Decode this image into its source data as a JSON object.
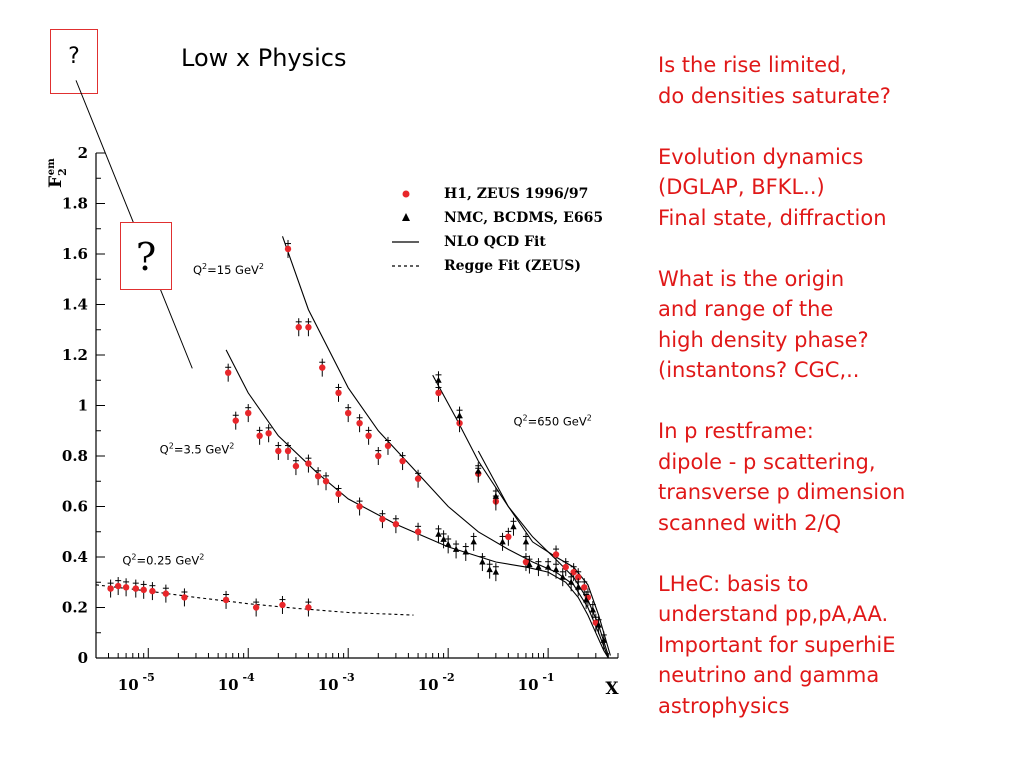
{
  "slide": {
    "title": "Low x Physics",
    "question_mark_1": "?",
    "question_mark_2": "?",
    "notes": [
      [
        "Is the rise limited,",
        "do densities saturate?"
      ],
      [
        "Evolution dynamics",
        "(DGLAP, BFKL..)",
        "Final state, diffraction"
      ],
      [
        "What is the origin",
        "and range of the",
        "high density phase?",
        "(instantons? CGC,.."
      ],
      [
        "In p restframe:",
        "dipole - p scattering,",
        "transverse p dimension",
        "scanned with 2/Q"
      ],
      [
        "LHeC: basis to",
        "understand pp,pA,AA.",
        "Important for superhiE",
        "neutrino and gamma",
        "astrophysics"
      ]
    ]
  },
  "chart_data": {
    "type": "scatter",
    "xlabel": "X",
    "ylabel_main": "F",
    "ylabel_sub": "2",
    "ylabel_sup": "em",
    "x_scale": "log",
    "xlim": [
      3e-06,
      0.5
    ],
    "ylim": [
      0,
      2
    ],
    "y_ticks": [
      "0",
      "0.2",
      "0.4",
      "0.6",
      "0.8",
      "1",
      "1.2",
      "1.4",
      "1.6",
      "1.8",
      "2"
    ],
    "x_ticks": [
      {
        "base": "10",
        "exp": "-5",
        "value": 1e-05
      },
      {
        "base": "10",
        "exp": "-4",
        "value": 0.0001
      },
      {
        "base": "10",
        "exp": "-3",
        "value": 0.001
      },
      {
        "base": "10",
        "exp": "-2",
        "value": 0.01
      },
      {
        "base": "10",
        "exp": "-1",
        "value": 0.1
      }
    ],
    "legend": [
      {
        "label": "H1, ZEUS 1996/97",
        "marker": "circle",
        "color": "#e8262a"
      },
      {
        "label": "NMC, BCDMS, E665",
        "marker": "triangle",
        "color": "#000000"
      },
      {
        "label": "NLO QCD Fit",
        "marker": "solid-line",
        "color": "#000000"
      },
      {
        "label": "Regge Fit (ZEUS)",
        "marker": "dashed-line",
        "color": "#000000"
      }
    ],
    "legend_placement": "top-right",
    "q2_labels": [
      {
        "pre": "Q",
        "sup": "2",
        "mid": "=15 GeV",
        "sup2": "2",
        "x": 2.8e-05,
        "y": 1.52
      },
      {
        "pre": "Q",
        "sup": "2",
        "mid": "=3.5 GeV",
        "sup2": "2",
        "x": 1.3e-05,
        "y": 0.81
      },
      {
        "pre": "Q",
        "sup": "2",
        "mid": "=0.25 GeV",
        "sup2": "2",
        "x": 5.5e-06,
        "y": 0.37
      },
      {
        "pre": "Q",
        "sup": "2",
        "mid": "=650 GeV",
        "sup2": "2",
        "x": 0.045,
        "y": 0.92
      }
    ],
    "series": [
      {
        "name": "H1, ZEUS 1996/97",
        "marker": "circle",
        "color": "#e8262a",
        "points": [
          [
            4.2e-06,
            0.275
          ],
          [
            5e-06,
            0.285
          ],
          [
            6e-06,
            0.28
          ],
          [
            7.5e-06,
            0.275
          ],
          [
            9e-06,
            0.27
          ],
          [
            1.1e-05,
            0.265
          ],
          [
            1.5e-05,
            0.255
          ],
          [
            2.3e-05,
            0.24
          ],
          [
            6e-05,
            0.23
          ],
          [
            0.00012,
            0.2
          ],
          [
            0.00022,
            0.21
          ],
          [
            0.0004,
            0.2
          ],
          [
            6.3e-05,
            1.13
          ],
          [
            7.5e-05,
            0.94
          ],
          [
            0.0001,
            0.97
          ],
          [
            0.00013,
            0.88
          ],
          [
            0.00016,
            0.89
          ],
          [
            0.0002,
            0.82
          ],
          [
            0.00025,
            0.82
          ],
          [
            0.0003,
            0.76
          ],
          [
            0.0004,
            0.77
          ],
          [
            0.0005,
            0.72
          ],
          [
            0.0006,
            0.7
          ],
          [
            0.0008,
            0.65
          ],
          [
            0.0013,
            0.6
          ],
          [
            0.0022,
            0.55
          ],
          [
            0.003,
            0.53
          ],
          [
            0.005,
            0.5
          ],
          [
            0.00025,
            1.62
          ],
          [
            0.00032,
            1.31
          ],
          [
            0.0004,
            1.31
          ],
          [
            0.00055,
            1.15
          ],
          [
            0.0008,
            1.05
          ],
          [
            0.001,
            0.97
          ],
          [
            0.0013,
            0.93
          ],
          [
            0.0016,
            0.88
          ],
          [
            0.002,
            0.8
          ],
          [
            0.0025,
            0.84
          ],
          [
            0.0035,
            0.78
          ],
          [
            0.005,
            0.71
          ],
          [
            0.008,
            1.05
          ],
          [
            0.013,
            0.93
          ],
          [
            0.02,
            0.73
          ],
          [
            0.03,
            0.62
          ],
          [
            0.04,
            0.48
          ],
          [
            0.06,
            0.38
          ],
          [
            0.12,
            0.41
          ],
          [
            0.15,
            0.36
          ],
          [
            0.18,
            0.34
          ],
          [
            0.2,
            0.32
          ],
          [
            0.23,
            0.28
          ],
          [
            0.25,
            0.24
          ],
          [
            0.3,
            0.14
          ]
        ]
      },
      {
        "name": "NMC, BCDMS, E665",
        "marker": "triangle",
        "color": "#000000",
        "points": [
          [
            0.008,
            1.1
          ],
          [
            0.013,
            0.96
          ],
          [
            0.02,
            0.74
          ],
          [
            0.03,
            0.64
          ],
          [
            0.035,
            0.46
          ],
          [
            0.045,
            0.52
          ],
          [
            0.06,
            0.46
          ],
          [
            0.008,
            0.49
          ],
          [
            0.009,
            0.47
          ],
          [
            0.01,
            0.45
          ],
          [
            0.012,
            0.43
          ],
          [
            0.015,
            0.42
          ],
          [
            0.018,
            0.46
          ],
          [
            0.022,
            0.38
          ],
          [
            0.026,
            0.35
          ],
          [
            0.03,
            0.34
          ],
          [
            0.065,
            0.37
          ],
          [
            0.08,
            0.36
          ],
          [
            0.1,
            0.36
          ],
          [
            0.12,
            0.35
          ],
          [
            0.14,
            0.32
          ],
          [
            0.17,
            0.3
          ],
          [
            0.2,
            0.28
          ],
          [
            0.24,
            0.23
          ],
          [
            0.28,
            0.19
          ],
          [
            0.32,
            0.13
          ],
          [
            0.36,
            0.07
          ]
        ]
      },
      {
        "name": "NLO QCD Fit",
        "line": "solid",
        "color": "#000000",
        "curves": [
          [
            [
              6e-05,
              1.22
            ],
            [
              0.0001,
              1.05
            ],
            [
              0.0002,
              0.88
            ],
            [
              0.0005,
              0.73
            ],
            [
              0.001,
              0.63
            ],
            [
              0.003,
              0.53
            ],
            [
              0.01,
              0.44
            ],
            [
              0.03,
              0.38
            ],
            [
              0.06,
              0.36
            ],
            [
              0.1,
              0.34
            ],
            [
              0.15,
              0.3
            ],
            [
              0.2,
              0.24
            ],
            [
              0.25,
              0.17
            ],
            [
              0.3,
              0.1
            ],
            [
              0.36,
              0.03
            ],
            [
              0.4,
              0.0
            ]
          ],
          [
            [
              0.00022,
              1.67
            ],
            [
              0.0004,
              1.38
            ],
            [
              0.001,
              1.07
            ],
            [
              0.002,
              0.9
            ],
            [
              0.005,
              0.73
            ],
            [
              0.01,
              0.6
            ],
            [
              0.02,
              0.5
            ],
            [
              0.04,
              0.43
            ],
            [
              0.07,
              0.38
            ],
            [
              0.12,
              0.34
            ],
            [
              0.18,
              0.29
            ],
            [
              0.25,
              0.2
            ],
            [
              0.32,
              0.1
            ],
            [
              0.4,
              0.0
            ]
          ],
          [
            [
              0.007,
              1.12
            ],
            [
              0.012,
              0.95
            ],
            [
              0.02,
              0.78
            ],
            [
              0.04,
              0.6
            ],
            [
              0.07,
              0.48
            ],
            [
              0.12,
              0.39
            ],
            [
              0.18,
              0.32
            ],
            [
              0.25,
              0.23
            ],
            [
              0.32,
              0.13
            ],
            [
              0.4,
              0.01
            ]
          ],
          [
            [
              0.02,
              0.82
            ],
            [
              0.04,
              0.6
            ],
            [
              0.07,
              0.46
            ],
            [
              0.12,
              0.4
            ],
            [
              0.18,
              0.36
            ],
            [
              0.25,
              0.29
            ],
            [
              0.32,
              0.17
            ],
            [
              0.42,
              0.01
            ]
          ]
        ]
      },
      {
        "name": "Regge Fit (ZEUS)",
        "line": "dashed",
        "color": "#000000",
        "curves": [
          [
            [
              3e-06,
              0.29
            ],
            [
              1e-05,
              0.265
            ],
            [
              3e-05,
              0.24
            ],
            [
              0.0001,
              0.215
            ],
            [
              0.0003,
              0.197
            ],
            [
              0.001,
              0.18
            ],
            [
              0.0045,
              0.17
            ]
          ]
        ]
      }
    ],
    "annotation_line": {
      "from": [
        3e-06,
        2.05
      ],
      "to": [
        5.5e-05,
        1.25
      ]
    }
  }
}
